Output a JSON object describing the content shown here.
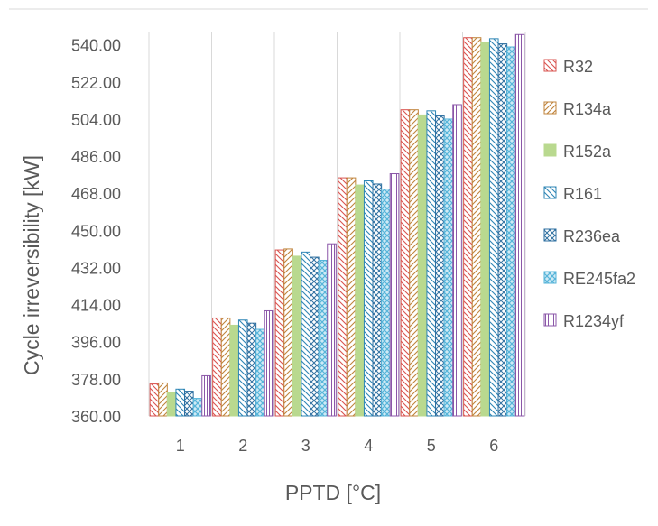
{
  "chart_data": {
    "type": "bar",
    "title": "",
    "xlabel": "PPTD [°C]",
    "ylabel": "Cycle irreversibility  [kW]",
    "ylim": [
      360,
      546
    ],
    "yticks": [
      "360.00",
      "378.00",
      "396.00",
      "414.00",
      "432.00",
      "450.00",
      "468.00",
      "486.00",
      "504.00",
      "522.00",
      "540.00"
    ],
    "categories": [
      "1",
      "2",
      "3",
      "4",
      "5",
      "6"
    ],
    "grid": "vertical lines between categories",
    "legend_position": "right",
    "series": [
      {
        "name": "R32",
        "pattern": "diag-down",
        "color": "#d9534f",
        "values": [
          375.5,
          407.5,
          440.5,
          475.5,
          508.5,
          543.5
        ]
      },
      {
        "name": "R134a",
        "pattern": "diag-up",
        "color": "#c0843c",
        "values": [
          376.0,
          407.5,
          441.0,
          475.5,
          508.5,
          543.5
        ]
      },
      {
        "name": "R152a",
        "pattern": "solid",
        "color": "#b9d98f",
        "values": [
          371.5,
          404.0,
          437.5,
          472.0,
          506.0,
          541.0
        ]
      },
      {
        "name": "R161",
        "pattern": "diag-down",
        "color": "#2e86b5",
        "values": [
          373.0,
          406.5,
          439.5,
          474.0,
          508.0,
          543.0
        ]
      },
      {
        "name": "R236ea",
        "pattern": "cross",
        "color": "#2e6fa0",
        "values": [
          372.0,
          405.0,
          437.0,
          472.5,
          505.5,
          540.5
        ]
      },
      {
        "name": "RE245fa2",
        "pattern": "dots",
        "color": "#56b4d9",
        "values": [
          368.5,
          402.0,
          435.5,
          470.0,
          504.0,
          539.0
        ]
      },
      {
        "name": "R1234yf",
        "pattern": "vertical",
        "color": "#8b57a8",
        "values": [
          379.5,
          411.0,
          443.5,
          477.5,
          511.0,
          545.0
        ]
      }
    ]
  }
}
